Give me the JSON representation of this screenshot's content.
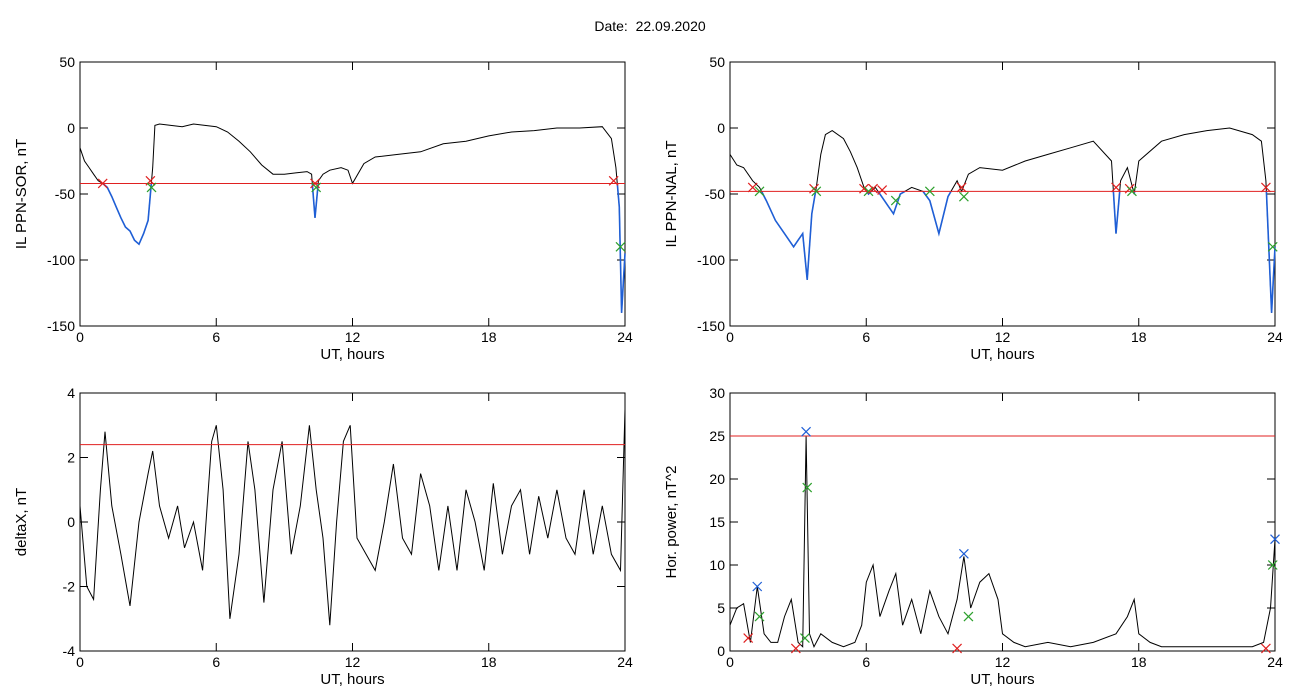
{
  "header": {
    "date_label": "Date:",
    "date_value": "22.09.2020"
  },
  "chart_data": [
    {
      "type": "line",
      "ylabel": "IL PPN-SOR, nT",
      "xlabel": "UT, hours",
      "xlim": [
        0,
        24
      ],
      "ylim": [
        -150,
        50
      ],
      "xticks": [
        0,
        6,
        12,
        18,
        24
      ],
      "yticks": [
        -150,
        -100,
        -50,
        0,
        50
      ],
      "threshold": -42,
      "colors": {
        "trace": "#000000",
        "below": "#1f5fd6",
        "threshold": "#e02020"
      },
      "series": [
        {
          "x": [
            0,
            0.2,
            0.4,
            0.6,
            0.8,
            1.0,
            1.2,
            1.4,
            1.6,
            1.8,
            2.0,
            2.2,
            2.4,
            2.6,
            2.8,
            3.0,
            3.1,
            3.2,
            3.3,
            3.5,
            4,
            4.5,
            5,
            5.5,
            6,
            6.5,
            7,
            7.5,
            8,
            8.5,
            9,
            9.5,
            10,
            10.2,
            10.35,
            10.5,
            10.7,
            11,
            11.5,
            11.8,
            12,
            12.5,
            13,
            14,
            15,
            16,
            17,
            18,
            19,
            20,
            21,
            22,
            23,
            23.4,
            23.6,
            23.75,
            23.85,
            24
          ],
          "values": [
            -15,
            -25,
            -30,
            -35,
            -40,
            -42,
            -45,
            -52,
            -60,
            -68,
            -75,
            -78,
            -85,
            -88,
            -80,
            -70,
            -50,
            -30,
            2,
            3,
            2,
            1,
            3,
            2,
            1,
            -3,
            -10,
            -18,
            -28,
            -35,
            -35,
            -34,
            -33,
            -35,
            -68,
            -40,
            -35,
            -32,
            -30,
            -32,
            -42,
            -27,
            -22,
            -20,
            -18,
            -12,
            -10,
            -6,
            -3,
            -2,
            0,
            0,
            1,
            -8,
            -30,
            -60,
            -140,
            -95
          ]
        }
      ],
      "markers": [
        {
          "x": 1.0,
          "y": -42,
          "color": "#e02020"
        },
        {
          "x": 3.1,
          "y": -40,
          "color": "#e02020"
        },
        {
          "x": 3.15,
          "y": -45,
          "color": "#2ca02c"
        },
        {
          "x": 10.35,
          "y": -42,
          "color": "#e02020"
        },
        {
          "x": 10.4,
          "y": -45,
          "color": "#2ca02c"
        },
        {
          "x": 23.5,
          "y": -40,
          "color": "#e02020"
        },
        {
          "x": 23.8,
          "y": -90,
          "color": "#2ca02c"
        }
      ]
    },
    {
      "type": "line",
      "ylabel": "IL PPN-NAL, nT",
      "xlabel": "UT, hours",
      "xlim": [
        0,
        24
      ],
      "ylim": [
        -150,
        50
      ],
      "xticks": [
        0,
        6,
        12,
        18,
        24
      ],
      "yticks": [
        -150,
        -100,
        -50,
        0,
        50
      ],
      "threshold": -48,
      "colors": {
        "trace": "#000000",
        "below": "#1f5fd6",
        "threshold": "#e02020"
      },
      "series": [
        {
          "x": [
            0,
            0.3,
            0.6,
            1.0,
            1.3,
            1.6,
            2.0,
            2.4,
            2.8,
            3.0,
            3.2,
            3.4,
            3.6,
            3.8,
            4.0,
            4.2,
            4.5,
            5.0,
            5.3,
            5.6,
            5.9,
            6.1,
            6.4,
            6.8,
            7.2,
            7.5,
            8.0,
            8.5,
            8.8,
            9.2,
            9.6,
            10.0,
            10.2,
            10.5,
            11,
            12,
            13,
            14,
            15,
            16,
            16.8,
            17.0,
            17.2,
            17.5,
            17.8,
            18,
            19,
            20,
            21,
            22,
            23,
            23.4,
            23.6,
            23.85,
            24
          ],
          "values": [
            -20,
            -28,
            -30,
            -40,
            -45,
            -55,
            -70,
            -80,
            -90,
            -85,
            -80,
            -115,
            -65,
            -45,
            -20,
            -5,
            -2,
            -8,
            -18,
            -30,
            -45,
            -50,
            -45,
            -55,
            -65,
            -50,
            -45,
            -48,
            -55,
            -80,
            -52,
            -40,
            -48,
            -35,
            -30,
            -32,
            -25,
            -20,
            -15,
            -10,
            -25,
            -80,
            -40,
            -30,
            -50,
            -25,
            -10,
            -5,
            -2,
            0,
            -5,
            -10,
            -40,
            -140,
            -90
          ]
        }
      ],
      "markers": [
        {
          "x": 1.0,
          "y": -45,
          "color": "#e02020"
        },
        {
          "x": 1.3,
          "y": -48,
          "color": "#2ca02c"
        },
        {
          "x": 3.7,
          "y": -46,
          "color": "#e02020"
        },
        {
          "x": 3.8,
          "y": -48,
          "color": "#2ca02c"
        },
        {
          "x": 5.9,
          "y": -46,
          "color": "#e02020"
        },
        {
          "x": 6.1,
          "y": -48,
          "color": "#2ca02c"
        },
        {
          "x": 6.3,
          "y": -46,
          "color": "#e02020"
        },
        {
          "x": 6.7,
          "y": -47,
          "color": "#e02020"
        },
        {
          "x": 7.3,
          "y": -55,
          "color": "#2ca02c"
        },
        {
          "x": 8.8,
          "y": -48,
          "color": "#2ca02c"
        },
        {
          "x": 10.2,
          "y": -45,
          "color": "#e02020"
        },
        {
          "x": 10.3,
          "y": -52,
          "color": "#2ca02c"
        },
        {
          "x": 17.0,
          "y": -45,
          "color": "#e02020"
        },
        {
          "x": 17.6,
          "y": -46,
          "color": "#e02020"
        },
        {
          "x": 17.7,
          "y": -48,
          "color": "#2ca02c"
        },
        {
          "x": 23.6,
          "y": -45,
          "color": "#e02020"
        },
        {
          "x": 23.9,
          "y": -90,
          "color": "#2ca02c"
        }
      ]
    },
    {
      "type": "line",
      "ylabel": "deltaX, nT",
      "xlabel": "UT, hours",
      "xlim": [
        0,
        24
      ],
      "ylim": [
        -4,
        4
      ],
      "xticks": [
        0,
        6,
        12,
        18,
        24
      ],
      "yticks": [
        -4,
        -2,
        0,
        2,
        4
      ],
      "threshold": 2.4,
      "colors": {
        "trace": "#000000",
        "threshold": "#e02020"
      },
      "series": [
        {
          "x": [
            0,
            0.3,
            0.6,
            0.9,
            1.1,
            1.4,
            1.8,
            2.2,
            2.6,
            3.0,
            3.2,
            3.5,
            3.9,
            4.3,
            4.6,
            5.0,
            5.4,
            5.8,
            6.0,
            6.3,
            6.6,
            7.0,
            7.4,
            7.7,
            8.1,
            8.5,
            8.9,
            9.3,
            9.7,
            10.1,
            10.4,
            10.7,
            11.0,
            11.3,
            11.6,
            11.9,
            12.2,
            12.6,
            13.0,
            13.4,
            13.8,
            14.2,
            14.6,
            15.0,
            15.4,
            15.8,
            16.2,
            16.6,
            17.0,
            17.4,
            17.8,
            18.2,
            18.6,
            19.0,
            19.4,
            19.8,
            20.2,
            20.6,
            21.0,
            21.4,
            21.8,
            22.2,
            22.6,
            23.0,
            23.4,
            23.8,
            24
          ],
          "values": [
            0.5,
            -2,
            -2.4,
            1,
            2.8,
            0.5,
            -1,
            -2.6,
            0,
            1.5,
            2.2,
            0.5,
            -0.5,
            0.5,
            -0.8,
            0,
            -1.5,
            2.5,
            3,
            1,
            -3,
            -1,
            2.5,
            1,
            -2.5,
            1,
            2.5,
            -1,
            0.5,
            3,
            1,
            -0.5,
            -3.2,
            0,
            2.5,
            3,
            -0.5,
            -1,
            -1.5,
            0,
            1.8,
            -0.5,
            -1,
            1.5,
            0.5,
            -1.5,
            0.5,
            -1.5,
            1,
            0,
            -1.5,
            1.2,
            -1,
            0.5,
            1,
            -1,
            0.8,
            -0.5,
            1,
            -0.5,
            -1,
            1,
            -1,
            0.5,
            -1,
            -1.5,
            3.5
          ]
        }
      ],
      "markers": []
    },
    {
      "type": "line",
      "ylabel": "Hor. power, nT^2",
      "xlabel": "UT, hours",
      "xlim": [
        0,
        24
      ],
      "ylim": [
        0,
        30
      ],
      "xticks": [
        0,
        6,
        12,
        18,
        24
      ],
      "yticks": [
        0,
        5,
        10,
        15,
        20,
        25,
        30
      ],
      "threshold": 25,
      "colors": {
        "trace": "#000000",
        "threshold": "#e02020"
      },
      "series": [
        {
          "x": [
            0,
            0.3,
            0.6,
            0.9,
            1.2,
            1.5,
            1.8,
            2.1,
            2.4,
            2.7,
            3.0,
            3.2,
            3.35,
            3.5,
            3.7,
            4.0,
            4.5,
            5.0,
            5.5,
            5.8,
            6.0,
            6.3,
            6.6,
            7.0,
            7.3,
            7.6,
            8.0,
            8.4,
            8.8,
            9.2,
            9.6,
            10.0,
            10.3,
            10.6,
            11.0,
            11.4,
            11.8,
            12.0,
            12.5,
            13,
            14,
            15,
            16,
            17,
            17.5,
            17.8,
            18,
            18.5,
            19,
            20,
            21,
            22,
            23,
            23.5,
            23.8,
            24
          ],
          "values": [
            3,
            5,
            5.5,
            1,
            7.5,
            2,
            1,
            1,
            4,
            6,
            1,
            0.5,
            25,
            2,
            0.5,
            2,
            1,
            0.5,
            1,
            3,
            8,
            10,
            4,
            7,
            9,
            3,
            6,
            2,
            7,
            4,
            2,
            6,
            11,
            5,
            8,
            9,
            6,
            2,
            1,
            0.5,
            1,
            0.5,
            1,
            2,
            4,
            6,
            2,
            1,
            0.5,
            0.5,
            0.5,
            0.5,
            0.5,
            1,
            5,
            13
          ]
        }
      ],
      "markers": [
        {
          "x": 0.8,
          "y": 1.5,
          "color": "#e02020"
        },
        {
          "x": 1.2,
          "y": 7.5,
          "color": "#1f5fd6"
        },
        {
          "x": 1.3,
          "y": 4,
          "color": "#2ca02c"
        },
        {
          "x": 2.9,
          "y": 0.3,
          "color": "#e02020"
        },
        {
          "x": 3.35,
          "y": 25.5,
          "color": "#1f5fd6"
        },
        {
          "x": 3.4,
          "y": 19,
          "color": "#2ca02c"
        },
        {
          "x": 3.3,
          "y": 1.5,
          "color": "#2ca02c"
        },
        {
          "x": 10.0,
          "y": 0.3,
          "color": "#e02020"
        },
        {
          "x": 10.3,
          "y": 11.3,
          "color": "#1f5fd6"
        },
        {
          "x": 10.5,
          "y": 4,
          "color": "#2ca02c"
        },
        {
          "x": 23.6,
          "y": 0.3,
          "color": "#e02020"
        },
        {
          "x": 23.9,
          "y": 10,
          "color": "#2ca02c"
        },
        {
          "x": 24.0,
          "y": 13,
          "color": "#1f5fd6"
        }
      ]
    }
  ]
}
